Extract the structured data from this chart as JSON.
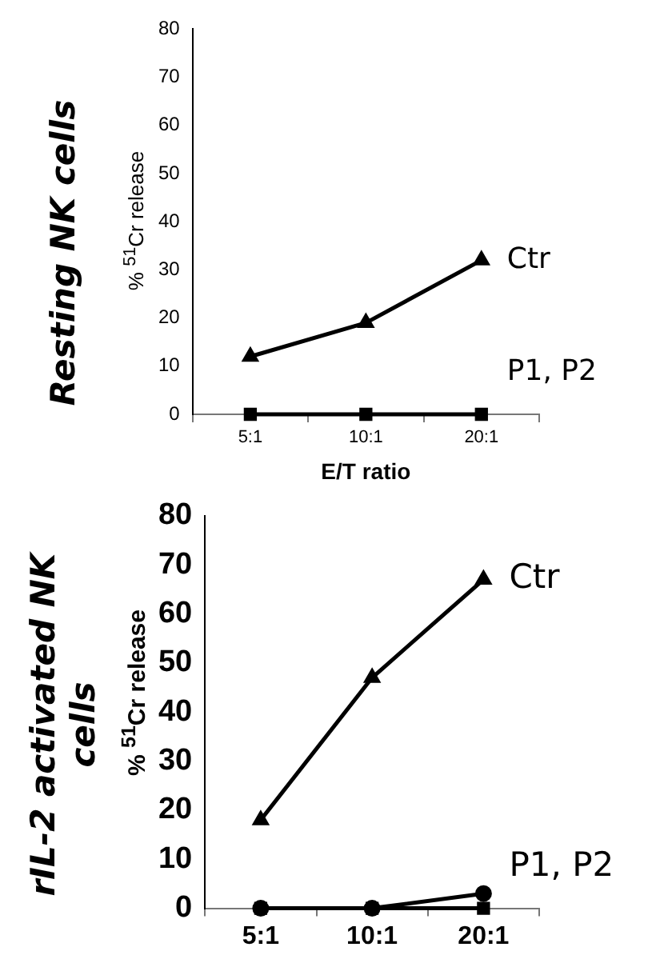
{
  "chart_data": [
    {
      "type": "line",
      "title": "Resting NK cells",
      "xlabel": "E/T ratio",
      "ylabel": "% $^{51}$Cr release",
      "categories": [
        "5:1",
        "10:1",
        "20:1"
      ],
      "ylim": [
        0,
        80
      ],
      "yticks": [
        0,
        10,
        20,
        30,
        40,
        50,
        60,
        70,
        80
      ],
      "series": [
        {
          "color": "#000000",
          "marker": "triangle",
          "values": [
            12,
            19,
            32
          ]
        },
        {
          "color": "#000000",
          "marker": "square",
          "values": [
            0,
            0,
            0
          ]
        }
      ],
      "annotations": [
        "Ctr",
        "P1, P2"
      ]
    },
    {
      "type": "line",
      "title": "rIL-2 activated NK cells",
      "ylabel": "% $^{51}$Cr release",
      "categories": [
        "5:1",
        "10:1",
        "20:1"
      ],
      "ylim": [
        0,
        80
      ],
      "yticks": [
        0,
        10,
        20,
        30,
        40,
        50,
        60,
        70,
        80
      ],
      "series": [
        {
          "color": "#000000",
          "marker": "triangle",
          "values": [
            18,
            47,
            67
          ]
        },
        {
          "color": "#000000",
          "marker": "square",
          "values": [
            0,
            0,
            0
          ]
        },
        {
          "color": "#000000",
          "marker": "circle",
          "values": [
            0,
            0,
            3
          ]
        }
      ],
      "annotations": [
        "Ctr",
        "P1, P2"
      ]
    }
  ]
}
